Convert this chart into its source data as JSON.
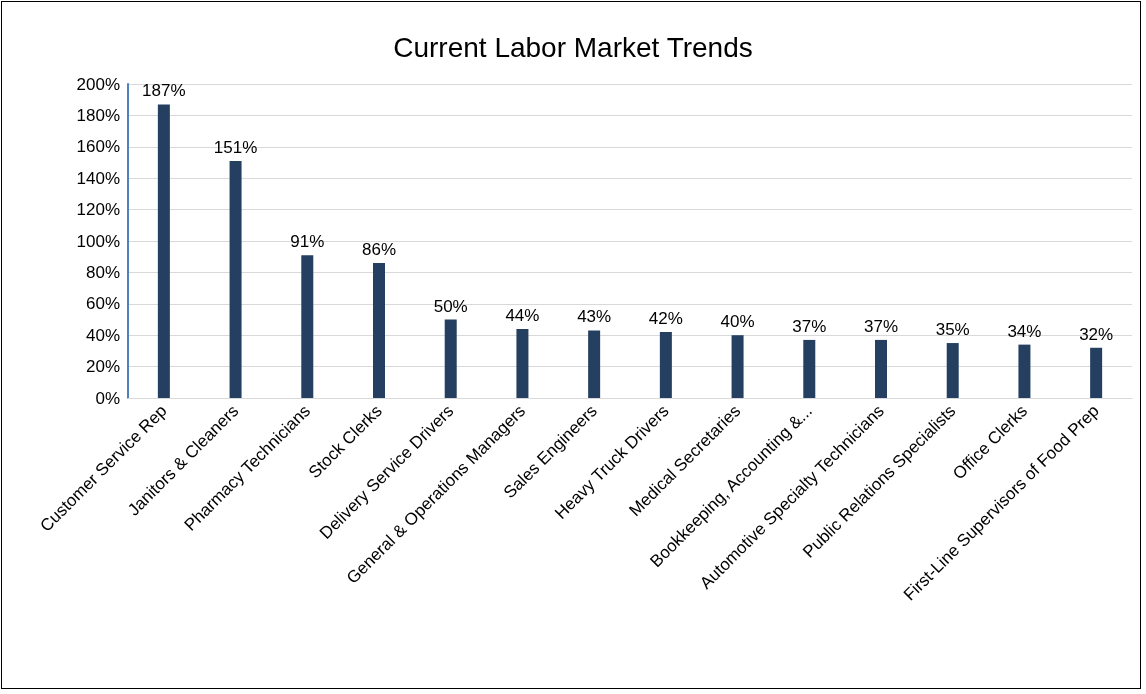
{
  "chart_data": {
    "type": "bar",
    "title": "Current Labor Market Trends",
    "categories": [
      "Customer Service Rep",
      "Janitors & Cleaners",
      "Pharmacy Technicians",
      "Stock Clerks",
      "Delivery Service Drivers",
      "General & Operations Managers",
      "Sales Engineers",
      "Heavy Truck Drivers",
      "Medical Secretaries",
      "Bookkeeping, Accounting &...",
      "Automotive Specialty Technicians",
      "Public Relations Specialists",
      "Office Clerks",
      "First-Line Supervisors of Food Prep"
    ],
    "values": [
      187,
      151,
      91,
      86,
      50,
      44,
      43,
      42,
      40,
      37,
      37,
      35,
      34,
      32
    ],
    "value_labels": [
      "187%",
      "151%",
      "91%",
      "86%",
      "50%",
      "44%",
      "43%",
      "42%",
      "40%",
      "37%",
      "37%",
      "35%",
      "34%",
      "32%"
    ],
    "color": "#243f60",
    "ylim": [
      0,
      200
    ],
    "yticks": [
      {
        "value": 0,
        "label": "0%"
      },
      {
        "value": 20,
        "label": "20%"
      },
      {
        "value": 40,
        "label": "40%"
      },
      {
        "value": 60,
        "label": "60%"
      },
      {
        "value": 80,
        "label": "80%"
      },
      {
        "value": 100,
        "label": "100%"
      },
      {
        "value": 120,
        "label": "120%"
      },
      {
        "value": 140,
        "label": "140%"
      },
      {
        "value": 160,
        "label": "160%"
      },
      {
        "value": 180,
        "label": "180%"
      },
      {
        "value": 200,
        "label": "200%"
      }
    ],
    "grid": "y"
  }
}
